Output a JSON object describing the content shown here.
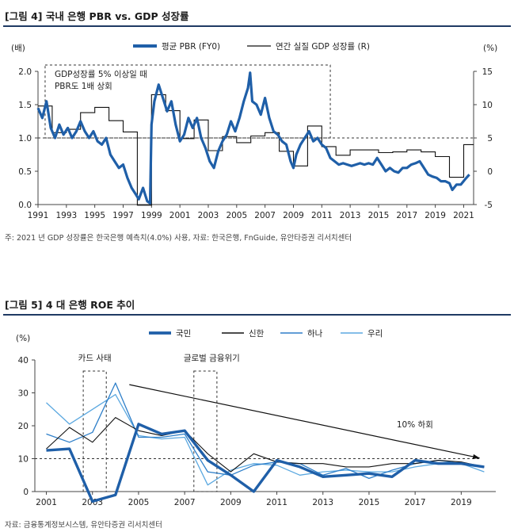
{
  "figure1": {
    "title": "[그림 4] 국내 은행 PBR vs. GDP 성장률",
    "note": "주: 2021 년 GDP 성장률은 한국은행 예측치(4.0%) 사용, 자료: 한국은행, FnGuide, 유안타증권 리서치센터"
  },
  "figure2": {
    "title": "[그림 5] 4 대 은행 ROE 추이",
    "note": "자료: 금융통계정보시스템, 유안타증권 리서치센터"
  },
  "chart_data": [
    {
      "type": "line",
      "title": "[그림 4] 국내 은행 PBR vs. GDP 성장률",
      "ylabel": "(배)",
      "y2label": "(%)",
      "ylim": [
        0,
        2.0
      ],
      "y2lim": [
        -5,
        15
      ],
      "yticks": [
        "0.0",
        "0.5",
        "1.0",
        "1.5",
        "2.0"
      ],
      "y2ticks": [
        "-5",
        "0",
        "5",
        "10",
        "15"
      ],
      "xticks": [
        "1991",
        "1993",
        "1995",
        "1997",
        "1999",
        "2001",
        "2003",
        "2005",
        "2007",
        "2009",
        "2011",
        "2013",
        "2015",
        "2017",
        "2019",
        "2021"
      ],
      "xlim": [
        1991,
        2021.7
      ],
      "legend_position": "top",
      "annotation": [
        "GDP성장률 5% 이상일 때",
        "PBR도 1배 상회"
      ],
      "series": [
        {
          "name": "평균 PBR (FY0)",
          "axis": "left",
          "color": "#1f5fa8",
          "x": [
            1991.0,
            1991.3,
            1991.6,
            1991.9,
            1992.2,
            1992.5,
            1992.8,
            1993.1,
            1993.4,
            1993.7,
            1994.0,
            1994.3,
            1994.6,
            1994.9,
            1995.2,
            1995.5,
            1995.8,
            1996.1,
            1996.4,
            1996.7,
            1997.0,
            1997.3,
            1997.6,
            1997.9,
            1998.1,
            1998.4,
            1998.7,
            1998.9,
            1999.0,
            1999.2,
            1999.5,
            1999.8,
            2000.1,
            2000.4,
            2000.7,
            2001.0,
            2001.3,
            2001.6,
            2001.9,
            2002.2,
            2002.5,
            2002.8,
            2003.1,
            2003.4,
            2003.7,
            2004.0,
            2004.3,
            2004.6,
            2004.9,
            2005.2,
            2005.5,
            2005.8,
            2005.95,
            2006.1,
            2006.4,
            2006.7,
            2007.0,
            2007.3,
            2007.6,
            2007.9,
            2008.2,
            2008.5,
            2008.8,
            2009.0,
            2009.2,
            2009.5,
            2009.8,
            2010.1,
            2010.4,
            2010.7,
            2011.0,
            2011.3,
            2011.6,
            2011.9,
            2012.2,
            2012.5,
            2012.8,
            2013.1,
            2013.4,
            2013.7,
            2014.0,
            2014.3,
            2014.6,
            2014.9,
            2015.2,
            2015.5,
            2015.8,
            2016.1,
            2016.4,
            2016.7,
            2017.0,
            2017.3,
            2017.6,
            2017.9,
            2018.2,
            2018.5,
            2018.8,
            2019.1,
            2019.4,
            2019.7,
            2020.0,
            2020.2,
            2020.5,
            2020.8,
            2021.1,
            2021.4
          ],
          "y": [
            1.45,
            1.3,
            1.55,
            1.15,
            1.0,
            1.2,
            1.05,
            1.15,
            1.0,
            1.1,
            1.25,
            1.1,
            1.0,
            1.1,
            0.95,
            0.9,
            1.0,
            0.75,
            0.65,
            0.55,
            0.6,
            0.4,
            0.25,
            0.15,
            0.08,
            0.25,
            0.05,
            0.02,
            1.2,
            1.55,
            1.8,
            1.6,
            1.4,
            1.55,
            1.2,
            0.95,
            1.05,
            1.3,
            1.15,
            1.3,
            1.0,
            0.85,
            0.65,
            0.55,
            0.8,
            0.95,
            1.05,
            1.25,
            1.1,
            1.3,
            1.55,
            1.75,
            1.98,
            1.55,
            1.5,
            1.35,
            1.6,
            1.3,
            1.1,
            1.05,
            0.95,
            0.9,
            0.65,
            0.55,
            0.75,
            0.9,
            1.0,
            1.1,
            0.95,
            1.0,
            0.9,
            0.85,
            0.7,
            0.65,
            0.6,
            0.62,
            0.6,
            0.58,
            0.6,
            0.62,
            0.6,
            0.62,
            0.6,
            0.7,
            0.6,
            0.5,
            0.55,
            0.5,
            0.48,
            0.55,
            0.55,
            0.6,
            0.62,
            0.65,
            0.55,
            0.45,
            0.42,
            0.4,
            0.35,
            0.35,
            0.32,
            0.22,
            0.3,
            0.3,
            0.38,
            0.45
          ]
        },
        {
          "name": "연간 실질 GDP 성장률 (R)",
          "axis": "right",
          "color": "#111111",
          "step": true,
          "x": [
            1991,
            1992,
            1993,
            1994,
            1995,
            1996,
            1997,
            1998,
            1999,
            2000,
            2001,
            2002,
            2003,
            2004,
            2005,
            2006,
            2007,
            2008,
            2009,
            2010,
            2011,
            2012,
            2013,
            2014,
            2015,
            2016,
            2017,
            2018,
            2019,
            2020,
            2021
          ],
          "y": [
            9.8,
            5.8,
            6.3,
            8.8,
            9.6,
            7.6,
            5.9,
            -5.1,
            11.5,
            9.1,
            4.9,
            7.7,
            3.1,
            5.2,
            4.3,
            5.3,
            5.8,
            3.0,
            0.8,
            6.8,
            3.7,
            2.4,
            3.2,
            3.2,
            2.8,
            2.9,
            3.2,
            2.9,
            2.2,
            -0.9,
            4.0
          ]
        }
      ]
    },
    {
      "type": "line",
      "title": "[그림 5] 4 대 은행 ROE 추이",
      "ylabel": "(%)",
      "ylim": [
        0,
        40
      ],
      "yticks": [
        "0",
        "10",
        "20",
        "30",
        "40"
      ],
      "xticks": [
        "2001",
        "2003",
        "2005",
        "2007",
        "2009",
        "2011",
        "2013",
        "2015",
        "2017",
        "2019"
      ],
      "xlim": [
        2000.5,
        2020.5
      ],
      "legend_position": "top",
      "annotations": [
        "카드 사태",
        "글로벌 금융위기",
        "10% 하회"
      ],
      "series": [
        {
          "name": "국민",
          "color": "#1f5fa8",
          "x": [
            2001,
            2002,
            2003,
            2004,
            2005,
            2006,
            2007,
            2008,
            2009,
            2010,
            2011,
            2012,
            2013,
            2014,
            2015,
            2016,
            2017,
            2018,
            2019,
            2020
          ],
          "y": [
            12.5,
            13.0,
            -3.0,
            -1.0,
            20.5,
            17.5,
            18.5,
            9.5,
            5.0,
            0.0,
            9.5,
            7.5,
            4.5,
            5.0,
            5.5,
            4.5,
            9.5,
            8.5,
            8.5,
            7.5
          ]
        },
        {
          "name": "신한",
          "color": "#111111",
          "x": [
            2001,
            2002,
            2003,
            2004,
            2005,
            2006,
            2007,
            2008,
            2009,
            2010,
            2011,
            2012,
            2013,
            2014,
            2015,
            2016,
            2017,
            2018,
            2019,
            2020
          ],
          "y": [
            13.0,
            19.5,
            15.0,
            22.5,
            18.5,
            17.0,
            18.5,
            11.5,
            6.0,
            11.5,
            9.0,
            8.5,
            8.5,
            7.5,
            7.5,
            8.5,
            8.5,
            9.5,
            9.0,
            7.5
          ]
        },
        {
          "name": "하나",
          "color": "#2e7fc9",
          "x": [
            2001,
            2002,
            2003,
            2004,
            2005,
            2006,
            2007,
            2008,
            2009,
            2010,
            2011,
            2012,
            2013,
            2014,
            2015,
            2016,
            2017,
            2018,
            2019,
            2020
          ],
          "y": [
            17.5,
            15.0,
            18.0,
            33.0,
            16.5,
            16.5,
            17.5,
            6.0,
            5.0,
            8.0,
            9.0,
            8.5,
            5.0,
            7.0,
            4.0,
            6.5,
            8.5,
            9.5,
            8.5,
            7.5
          ]
        },
        {
          "name": "우리",
          "color": "#5ba8e0",
          "x": [
            2001,
            2002,
            2003,
            2004,
            2005,
            2006,
            2007,
            2008,
            2009,
            2010,
            2011,
            2012,
            2013,
            2014,
            2015,
            2016,
            2017,
            2018,
            2019,
            2020
          ],
          "y": [
            27.0,
            20.5,
            25.0,
            29.5,
            17.0,
            16.0,
            16.5,
            2.0,
            6.5,
            8.5,
            8.0,
            5.0,
            6.0,
            6.5,
            6.0,
            6.0,
            7.5,
            8.5,
            8.5,
            6.0
          ]
        }
      ]
    }
  ]
}
